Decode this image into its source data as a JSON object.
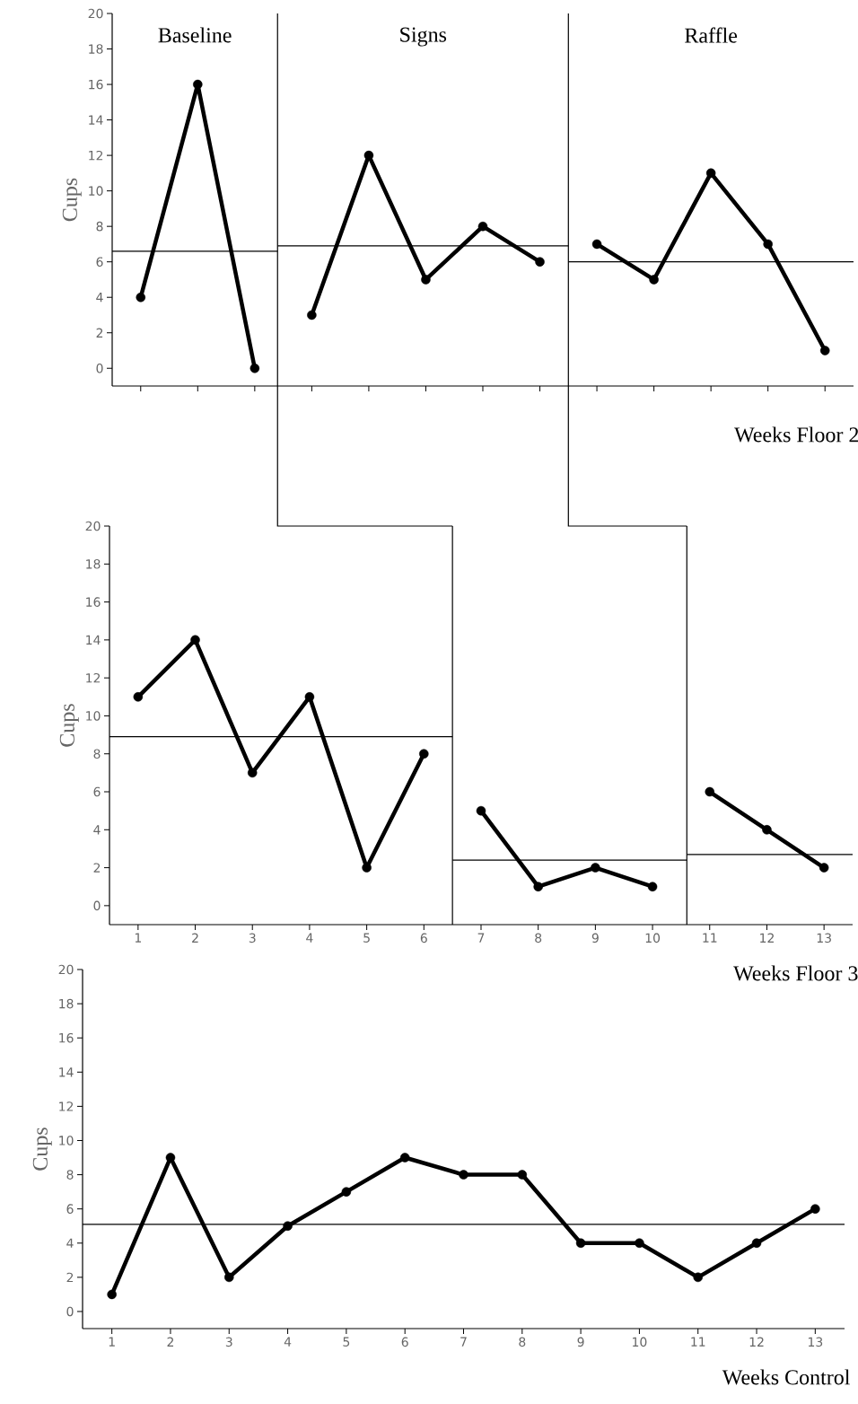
{
  "chart_data": [
    {
      "type": "line",
      "xlabel": "Weeks Floor 2",
      "ylabel": "Cups",
      "xlim": [
        0.5,
        13.5
      ],
      "ylim": [
        -1,
        20
      ],
      "xticks": [
        1,
        2,
        3,
        4,
        5,
        6,
        7,
        8,
        9,
        10,
        11,
        12,
        13
      ],
      "yticks": [
        0,
        2,
        4,
        6,
        8,
        10,
        12,
        14,
        16,
        18,
        20
      ],
      "tick_labels": "y",
      "marker": "circle",
      "line_style": "solid",
      "series": [
        {
          "x": [
            1,
            2,
            3
          ],
          "values": [
            4,
            16,
            0
          ],
          "color": "#000000"
        },
        {
          "x": [
            4,
            5,
            6,
            7,
            8
          ],
          "values": [
            3,
            12,
            5,
            8,
            6
          ],
          "color": "#000000"
        },
        {
          "x": [
            9,
            10,
            11,
            12,
            13
          ],
          "values": [
            7,
            5,
            11,
            7,
            1
          ],
          "color": "#000000"
        },
        {
          "x": [
            0.5,
            3.4
          ],
          "values": [
            6.6,
            6.6
          ],
          "color": "#000000",
          "marker": "none"
        },
        {
          "x": [
            3.4,
            8.5
          ],
          "values": [
            6.9,
            6.9
          ],
          "color": "#000000",
          "marker": "none"
        },
        {
          "x": [
            8.5,
            13.5
          ],
          "values": [
            6.0,
            6.0
          ],
          "color": "#000000",
          "marker": "none"
        }
      ],
      "ref_lines": [
        {
          "axis": "x",
          "value": 3.4
        },
        {
          "axis": "x",
          "value": 8.5
        }
      ],
      "annotations": [
        "Baseline",
        "Signs",
        "Raffle"
      ]
    },
    {
      "type": "line",
      "xlabel": "Weeks Floor 3",
      "ylabel": "Cups",
      "xlim": [
        0.5,
        13.5
      ],
      "ylim": [
        -1,
        20
      ],
      "xticks": [
        1,
        2,
        3,
        4,
        5,
        6,
        7,
        8,
        9,
        10,
        11,
        12,
        13
      ],
      "yticks": [
        0,
        2,
        4,
        6,
        8,
        10,
        12,
        14,
        16,
        18,
        20
      ],
      "marker": "circle",
      "line_style": "solid",
      "series": [
        {
          "x": [
            1,
            2,
            3,
            4,
            5,
            6
          ],
          "values": [
            11,
            14,
            7,
            11,
            2,
            8
          ],
          "color": "#000000"
        },
        {
          "x": [
            7,
            8,
            9,
            10
          ],
          "values": [
            5,
            1,
            2,
            1
          ],
          "color": "#000000"
        },
        {
          "x": [
            11,
            12,
            13
          ],
          "values": [
            6,
            4,
            2
          ],
          "color": "#000000"
        },
        {
          "x": [
            0.5,
            6.5
          ],
          "values": [
            8.9,
            8.9
          ],
          "color": "#000000",
          "marker": "none"
        },
        {
          "x": [
            6.5,
            10.6
          ],
          "values": [
            2.4,
            2.4
          ],
          "color": "#000000",
          "marker": "none"
        },
        {
          "x": [
            10.6,
            13.5
          ],
          "values": [
            2.7,
            2.7
          ],
          "color": "#000000",
          "marker": "none"
        }
      ],
      "ref_lines": [
        {
          "axis": "x",
          "value": 6.5
        },
        {
          "axis": "x",
          "value": 10.6
        }
      ]
    },
    {
      "type": "line",
      "xlabel": "Weeks Control",
      "ylabel": "Cups",
      "xlim": [
        0.5,
        13.5
      ],
      "ylim": [
        -1,
        20
      ],
      "xticks": [
        1,
        2,
        3,
        4,
        5,
        6,
        7,
        8,
        9,
        10,
        11,
        12,
        13
      ],
      "yticks": [
        0,
        2,
        4,
        6,
        8,
        10,
        12,
        14,
        16,
        18,
        20
      ],
      "marker": "circle",
      "line_style": "solid",
      "series": [
        {
          "x": [
            1,
            2,
            3,
            4,
            5,
            6,
            7,
            8,
            9,
            10,
            11,
            12,
            13
          ],
          "values": [
            1,
            9,
            2,
            5,
            7,
            9,
            8,
            8,
            4,
            4,
            2,
            4,
            6
          ],
          "color": "#000000"
        }
      ],
      "ref_lines": [
        {
          "axis": "y",
          "value": 5.1
        }
      ]
    }
  ]
}
